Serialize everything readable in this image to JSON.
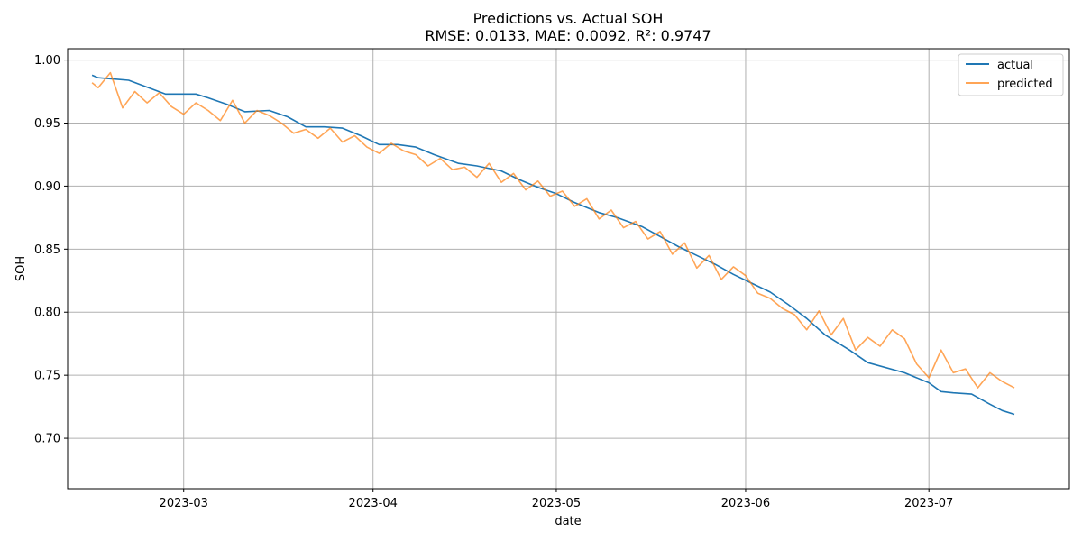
{
  "chart_data": {
    "type": "line",
    "title": "Predictions vs. Actual SOH",
    "subtitle": "RMSE: 0.0133, MAE: 0.0092, R²: 0.9747",
    "xlabel": "date",
    "ylabel": "SOH",
    "xlim": [
      "2023-02-10",
      "2023-07-24"
    ],
    "ylim": [
      0.66,
      1.009
    ],
    "x_ticks": [
      "2023-03-01",
      "2023-04-01",
      "2023-05-01",
      "2023-06-01",
      "2023-07-01"
    ],
    "x_tick_labels": [
      "2023-03",
      "2023-04",
      "2023-05",
      "2023-06",
      "2023-07"
    ],
    "y_ticks": [
      0.7,
      0.75,
      0.8,
      0.85,
      0.9,
      0.95,
      1.0
    ],
    "y_tick_labels": [
      "0.70",
      "0.75",
      "0.80",
      "0.85",
      "0.90",
      "0.95",
      "1.00"
    ],
    "grid": true,
    "legend_position": "top-right",
    "series": [
      {
        "name": "actual",
        "color": "#1f77b4",
        "x": [
          "2023-02-14",
          "2023-02-15",
          "2023-02-20",
          "2023-02-26",
          "2023-03-03",
          "2023-03-05",
          "2023-03-08",
          "2023-03-11",
          "2023-03-15",
          "2023-03-18",
          "2023-03-21",
          "2023-03-24",
          "2023-03-27",
          "2023-03-30",
          "2023-04-02",
          "2023-04-05",
          "2023-04-08",
          "2023-04-11",
          "2023-04-15",
          "2023-04-18",
          "2023-04-22",
          "2023-04-25",
          "2023-04-28",
          "2023-05-01",
          "2023-05-04",
          "2023-05-08",
          "2023-05-11",
          "2023-05-15",
          "2023-05-18",
          "2023-05-21",
          "2023-05-24",
          "2023-05-27",
          "2023-05-30",
          "2023-06-02",
          "2023-06-05",
          "2023-06-08",
          "2023-06-11",
          "2023-06-14",
          "2023-06-18",
          "2023-06-21",
          "2023-06-27",
          "2023-07-01",
          "2023-07-03",
          "2023-07-05",
          "2023-07-08",
          "2023-07-11",
          "2023-07-13",
          "2023-07-15"
        ],
        "values": [
          0.988,
          0.986,
          0.984,
          0.973,
          0.973,
          0.97,
          0.965,
          0.959,
          0.96,
          0.955,
          0.947,
          0.947,
          0.946,
          0.94,
          0.933,
          0.933,
          0.931,
          0.925,
          0.918,
          0.916,
          0.912,
          0.905,
          0.899,
          0.894,
          0.887,
          0.879,
          0.875,
          0.868,
          0.86,
          0.852,
          0.845,
          0.838,
          0.83,
          0.823,
          0.816,
          0.806,
          0.795,
          0.782,
          0.77,
          0.76,
          0.752,
          0.744,
          0.737,
          0.736,
          0.735,
          0.727,
          0.722,
          0.719
        ]
      },
      {
        "name": "predicted",
        "color": "#ff7f0e",
        "x": [
          "2023-02-14",
          "2023-02-15",
          "2023-02-17",
          "2023-02-19",
          "2023-02-21",
          "2023-02-23",
          "2023-02-25",
          "2023-02-27",
          "2023-03-01",
          "2023-03-03",
          "2023-03-05",
          "2023-03-07",
          "2023-03-09",
          "2023-03-11",
          "2023-03-13",
          "2023-03-15",
          "2023-03-17",
          "2023-03-19",
          "2023-03-21",
          "2023-03-23",
          "2023-03-25",
          "2023-03-27",
          "2023-03-29",
          "2023-03-31",
          "2023-04-02",
          "2023-04-04",
          "2023-04-06",
          "2023-04-08",
          "2023-04-10",
          "2023-04-12",
          "2023-04-14",
          "2023-04-16",
          "2023-04-18",
          "2023-04-20",
          "2023-04-22",
          "2023-04-24",
          "2023-04-26",
          "2023-04-28",
          "2023-04-30",
          "2023-05-02",
          "2023-05-04",
          "2023-05-06",
          "2023-05-08",
          "2023-05-10",
          "2023-05-12",
          "2023-05-14",
          "2023-05-16",
          "2023-05-18",
          "2023-05-20",
          "2023-05-22",
          "2023-05-24",
          "2023-05-26",
          "2023-05-28",
          "2023-05-30",
          "2023-06-01",
          "2023-06-03",
          "2023-06-05",
          "2023-06-07",
          "2023-06-09",
          "2023-06-11",
          "2023-06-13",
          "2023-06-15",
          "2023-06-17",
          "2023-06-19",
          "2023-06-21",
          "2023-06-23",
          "2023-06-25",
          "2023-06-27",
          "2023-06-29",
          "2023-07-01",
          "2023-07-03",
          "2023-07-05",
          "2023-07-07",
          "2023-07-09",
          "2023-07-11",
          "2023-07-13",
          "2023-07-15"
        ],
        "values": [
          0.982,
          0.978,
          0.99,
          0.962,
          0.975,
          0.966,
          0.974,
          0.963,
          0.957,
          0.966,
          0.96,
          0.952,
          0.968,
          0.95,
          0.96,
          0.956,
          0.95,
          0.942,
          0.945,
          0.938,
          0.946,
          0.935,
          0.94,
          0.931,
          0.926,
          0.934,
          0.928,
          0.925,
          0.916,
          0.922,
          0.913,
          0.915,
          0.907,
          0.918,
          0.903,
          0.91,
          0.897,
          0.904,
          0.892,
          0.896,
          0.884,
          0.89,
          0.874,
          0.881,
          0.867,
          0.872,
          0.858,
          0.864,
          0.846,
          0.855,
          0.835,
          0.845,
          0.826,
          0.836,
          0.829,
          0.815,
          0.811,
          0.803,
          0.798,
          0.786,
          0.801,
          0.782,
          0.795,
          0.77,
          0.78,
          0.773,
          0.786,
          0.779,
          0.759,
          0.748,
          0.77,
          0.752,
          0.755,
          0.74,
          0.752,
          0.745,
          0.74
        ]
      }
    ]
  }
}
